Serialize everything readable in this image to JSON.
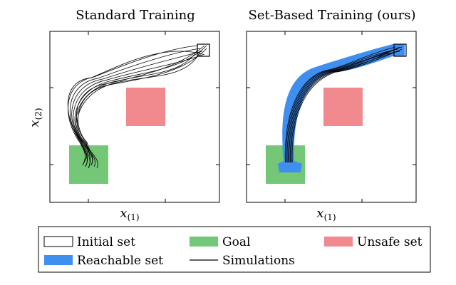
{
  "panels": [
    {
      "title": "Standard Training",
      "xlabel": "x",
      "xlabel_sub": "(1)",
      "ylabel": "x",
      "ylabel_sub": "(2)",
      "show_reachable": false
    },
    {
      "title": "Set-Based Training (ours)",
      "xlabel": "x",
      "xlabel_sub": "(1)",
      "ylabel": "",
      "ylabel_sub": "",
      "show_reachable": true
    }
  ],
  "legend": {
    "initial_set": "Initial set",
    "goal": "Goal",
    "unsafe_set": "Unsafe set",
    "reachable_set": "Reachable set",
    "simulations": "Simulations"
  },
  "colors": {
    "goal": "#74c776",
    "unsafe": "#f08a8f",
    "reachable": "#3f8ff0",
    "line": "#000000"
  }
}
